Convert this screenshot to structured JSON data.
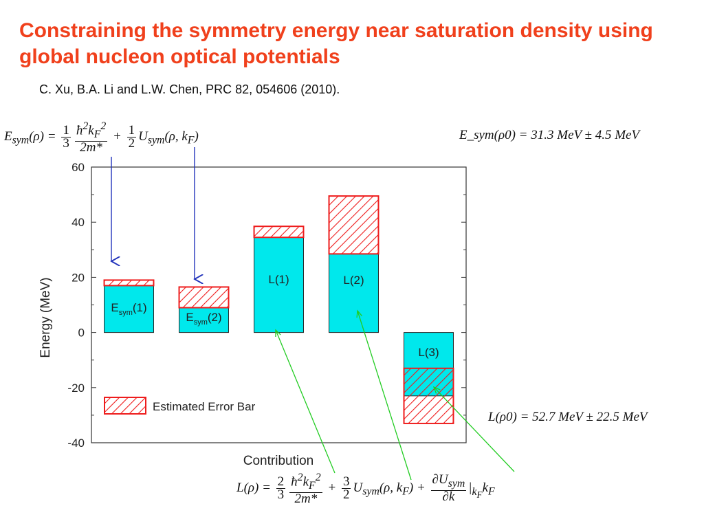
{
  "slide": {
    "title": "Constraining the symmetry energy near saturation density using global nucleon optical potentials",
    "citation": "C. Xu, B.A. Li and L.W. Chen, PRC 82, 054606 (2010).",
    "esym_value": "E_sym(ρ0) = 31.3 MeV ± 4.5 MeV",
    "l_value": "L(ρ0) = 52.7 MeV ± 22.5 MeV"
  },
  "chart_data": {
    "type": "bar",
    "xlabel": "Contribution",
    "ylabel": "Energy (MeV)",
    "ylim": [
      -40,
      60
    ],
    "yticks": [
      -40,
      -20,
      0,
      20,
      40,
      60
    ],
    "categories": [
      "Esym(1)",
      "Esym(2)",
      "L(1)",
      "L(2)",
      "L(3)"
    ],
    "values": [
      17,
      9,
      34.5,
      28.5,
      -23
    ],
    "error_bars": [
      {
        "low": 17,
        "high": 19
      },
      {
        "low": 9,
        "high": 16.5
      },
      {
        "low": 34.5,
        "high": 38.5
      },
      {
        "low": 28.5,
        "high": 49.5
      },
      {
        "low": -33,
        "high": -13
      }
    ],
    "legend": "Estimated Error Bar",
    "grid": false,
    "colors": {
      "bar": "#00e8ec",
      "error": "#ee1c1c",
      "blue_arrow": "#2233bb",
      "green_arrow": "#22cc22"
    }
  }
}
